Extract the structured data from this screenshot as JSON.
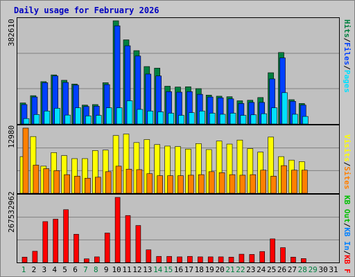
{
  "title": "Daily usage for February 2026",
  "colors": {
    "hits": "#008040",
    "files": "#0040ff",
    "pages": "#00e0ff",
    "visits": "#ffff00",
    "sites": "#ff8000",
    "kbf": "#ff0000",
    "kbin": "#0080ff",
    "kbout": "#00c000",
    "weekend_day": "#008040",
    "weekday": "#000000",
    "sep": "#000000"
  },
  "chart_data": [
    {
      "type": "bar",
      "title": "Daily usage for February 2026",
      "ymax_label": "382610",
      "ylim": [
        0,
        382610
      ],
      "legend": [
        {
          "name": "Pages",
          "color": "#00e0ff"
        },
        {
          "name": "Files",
          "color": "#0040ff"
        },
        {
          "name": "Hits",
          "color": "#008040"
        }
      ],
      "categories": [
        "1",
        "2",
        "3",
        "4",
        "5",
        "6",
        "7",
        "8",
        "9",
        "10",
        "11",
        "12",
        "13",
        "14",
        "15",
        "16",
        "17",
        "18",
        "19",
        "20",
        "21",
        "22",
        "23",
        "24",
        "25",
        "26",
        "27",
        "28"
      ],
      "series": [
        {
          "name": "Hits",
          "values": [
            78000,
            105000,
            157000,
            182000,
            162000,
            148000,
            70000,
            72000,
            153000,
            382610,
            312000,
            272000,
            213000,
            207000,
            140000,
            137000,
            138000,
            131000,
            107000,
            103000,
            101000,
            86000,
            88000,
            98000,
            190000,
            265000,
            90000,
            76000
          ]
        },
        {
          "name": "Files",
          "values": [
            72000,
            100000,
            153000,
            178000,
            154000,
            144000,
            65000,
            66000,
            146000,
            364000,
            290000,
            252000,
            185000,
            178000,
            120000,
            118000,
            120000,
            110000,
            100000,
            97000,
            93000,
            76000,
            80000,
            80000,
            167000,
            245000,
            84000,
            70000
          ]
        },
        {
          "name": "Pages",
          "values": [
            20000,
            35000,
            48000,
            58000,
            33000,
            60000,
            30000,
            32000,
            60000,
            60000,
            86000,
            54000,
            48000,
            45000,
            40000,
            32000,
            42000,
            48000,
            40000,
            36000,
            40000,
            32000,
            34000,
            38000,
            60000,
            116000,
            36000,
            28000
          ]
        }
      ]
    },
    {
      "type": "bar",
      "ymax_label": "12980",
      "ylim": [
        0,
        12980
      ],
      "legend": [
        {
          "name": "Sites",
          "color": "#ff8000"
        },
        {
          "name": "Visits",
          "color": "#ffff00"
        }
      ],
      "categories": [
        "1",
        "2",
        "3",
        "4",
        "5",
        "6",
        "7",
        "8",
        "9",
        "10",
        "11",
        "12",
        "13",
        "14",
        "15",
        "16",
        "17",
        "18",
        "19",
        "20",
        "21",
        "22",
        "23",
        "24",
        "25",
        "26",
        "27",
        "28"
      ],
      "series": [
        {
          "name": "Visits",
          "values": [
            7300,
            11300,
            5400,
            8100,
            7500,
            6900,
            6900,
            8500,
            8600,
            11500,
            11800,
            10100,
            10700,
            9700,
            9400,
            9300,
            8800,
            9900,
            8700,
            10400,
            9800,
            10600,
            8900,
            8200,
            11200,
            7300,
            6600,
            6300
          ]
        },
        {
          "name": "Sites",
          "values": [
            12980,
            5600,
            4900,
            4500,
            3700,
            3400,
            3000,
            3200,
            4300,
            5400,
            4800,
            4700,
            3900,
            3500,
            3500,
            3500,
            3600,
            3700,
            4300,
            4100,
            3700,
            3600,
            3700,
            4600,
            3400,
            5500,
            4600,
            4600
          ]
        }
      ]
    },
    {
      "type": "bar",
      "ymax_label": "267532962",
      "ylim": [
        0,
        267532962
      ],
      "legend": [
        {
          "name": "KB F",
          "color": "#ff0000"
        },
        {
          "name": "KB In",
          "color": "#0080ff"
        },
        {
          "name": "KB Out",
          "color": "#00c000"
        }
      ],
      "categories": [
        "1",
        "2",
        "3",
        "4",
        "5",
        "6",
        "7",
        "8",
        "9",
        "10",
        "11",
        "12",
        "13",
        "14",
        "15",
        "16",
        "17",
        "18",
        "19",
        "20",
        "21",
        "22",
        "23",
        "24",
        "25",
        "26",
        "27",
        "28"
      ],
      "series": [
        {
          "name": "KB F",
          "values": [
            22000000,
            46000000,
            168000000,
            178000000,
            217000000,
            116000000,
            15000000,
            23000000,
            121000000,
            267532962,
            193000000,
            152000000,
            52000000,
            25000000,
            25000000,
            23000000,
            25000000,
            23000000,
            23000000,
            23000000,
            22000000,
            34000000,
            33000000,
            45000000,
            97000000,
            61000000,
            22000000,
            16000000
          ]
        }
      ]
    }
  ],
  "xaxis": {
    "days": [
      "1",
      "2",
      "3",
      "4",
      "5",
      "6",
      "7",
      "8",
      "9",
      "10",
      "11",
      "12",
      "13",
      "14",
      "15",
      "16",
      "17",
      "18",
      "19",
      "20",
      "21",
      "22",
      "23",
      "24",
      "25",
      "26",
      "27",
      "28",
      "29",
      "30",
      "31"
    ],
    "weekend": [
      "1",
      "7",
      "8",
      "14",
      "15",
      "21",
      "22",
      "28",
      "29"
    ]
  }
}
